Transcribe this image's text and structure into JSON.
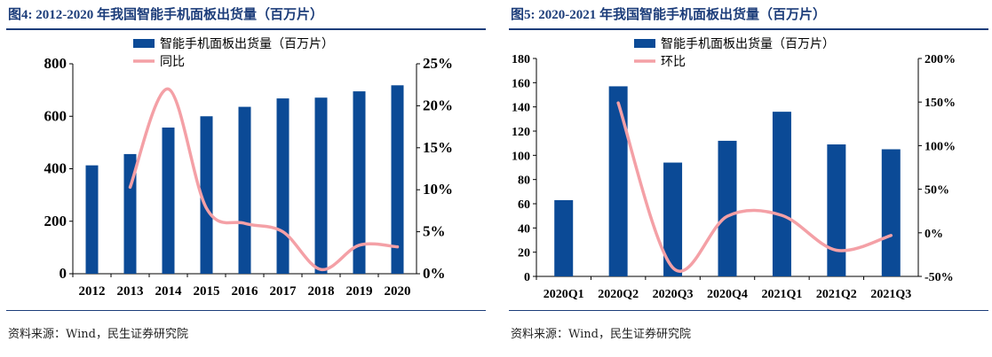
{
  "left": {
    "title": "图4: 2012-2020 年我国智能手机面板出货量（百万片）",
    "source": "资料来源：Wind，民生证券研究院",
    "chart_data": {
      "type": "bar",
      "categories": [
        "2012",
        "2013",
        "2014",
        "2015",
        "2016",
        "2017",
        "2018",
        "2019",
        "2020"
      ],
      "series": [
        {
          "name": "智能手机面板出货量（百万片）",
          "type": "bar",
          "axis": "left",
          "values": [
            413,
            456,
            557,
            600,
            636,
            668,
            671,
            695,
            718
          ]
        },
        {
          "name": "同比",
          "type": "line",
          "axis": "right",
          "values": [
            null,
            10.3,
            22.0,
            7.8,
            6.0,
            5.0,
            0.5,
            3.4,
            3.2
          ]
        }
      ],
      "ylim": [
        0,
        800
      ],
      "yticks": [
        "0",
        "200",
        "400",
        "600",
        "800"
      ],
      "y2lim": [
        0,
        25
      ],
      "y2ticks": [
        "0%",
        "5%",
        "10%",
        "15%",
        "20%",
        "25%"
      ],
      "legend_position": "top",
      "colors": {
        "bar": "#0b4a96",
        "line": "#f4a0a6"
      }
    }
  },
  "right": {
    "title": "图5: 2020-2021 年我国智能手机面板出货量（百万片）",
    "source": "资料来源：Wind，民生证券研究院",
    "chart_data": {
      "type": "bar",
      "categories": [
        "2020Q1",
        "2020Q2",
        "2020Q3",
        "2020Q4",
        "2021Q1",
        "2021Q2",
        "2021Q3"
      ],
      "series": [
        {
          "name": "智能手机面板出货量（百万片）",
          "type": "bar",
          "axis": "left",
          "values": [
            63,
            157,
            94,
            112,
            136,
            109,
            105
          ]
        },
        {
          "name": "环比",
          "type": "line",
          "axis": "right",
          "values": [
            null,
            149,
            -40,
            19,
            20,
            -20,
            -3
          ]
        }
      ],
      "ylim": [
        0,
        180
      ],
      "yticks": [
        "0",
        "20",
        "40",
        "60",
        "80",
        "100",
        "120",
        "140",
        "160",
        "180"
      ],
      "y2lim": [
        -50,
        200
      ],
      "y2ticks": [
        "-50%",
        "0%",
        "50%",
        "100%",
        "150%",
        "200%"
      ],
      "legend_position": "top",
      "colors": {
        "bar": "#0b4a96",
        "line": "#f4a0a6"
      }
    }
  }
}
